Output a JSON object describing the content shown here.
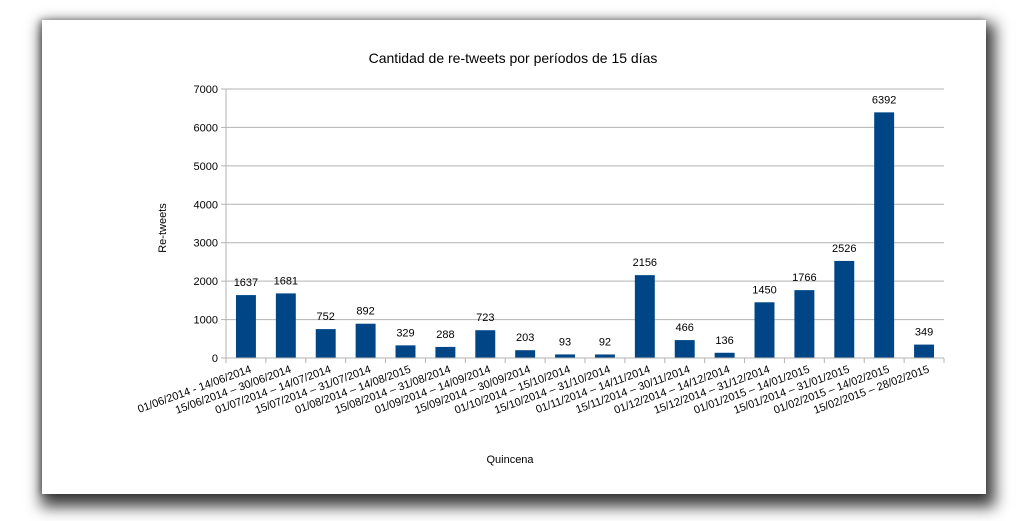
{
  "chart_data": {
    "type": "bar",
    "title": "Cantidad de re-tweets por períodos de 15 días",
    "xlabel": "Quincena",
    "ylabel": "Re-tweets",
    "ylim": [
      0,
      7000
    ],
    "yticks": [
      0,
      1000,
      2000,
      3000,
      4000,
      5000,
      6000,
      7000
    ],
    "grid": true,
    "bar_color": "#004586",
    "categories": [
      "01/06/2014 - 14/06/2014",
      "15/06/2014 – 30/06/2014",
      "01/07/2014 – 14/07/2014",
      "15/07/2014 – 31/07/2014",
      "01/08/2014 – 14/08/2015",
      "15/08/2014 – 31/08/2014",
      "01/09/2014 – 14/09/2014",
      "15/09/2014 – 30/09/2014",
      "01/10/2014 – 15/10/2014",
      "15/10/2014 – 31/10/2014",
      "01/11/2014 – 14/11/2014",
      "15/11/2014 – 30/11/2014",
      "01/12/2014 – 14/12/2014",
      "15/12/2014 – 31/12/2014",
      "01/01/2015 – 14/01/2015",
      "15/01/2014 – 31/01/2015",
      "01/02/2015 – 14/02/2015",
      "15/02/2015 – 28/02/2015"
    ],
    "values": [
      1637,
      1681,
      752,
      892,
      329,
      288,
      723,
      203,
      93,
      92,
      2156,
      466,
      136,
      1450,
      1766,
      2526,
      6392,
      349
    ]
  }
}
